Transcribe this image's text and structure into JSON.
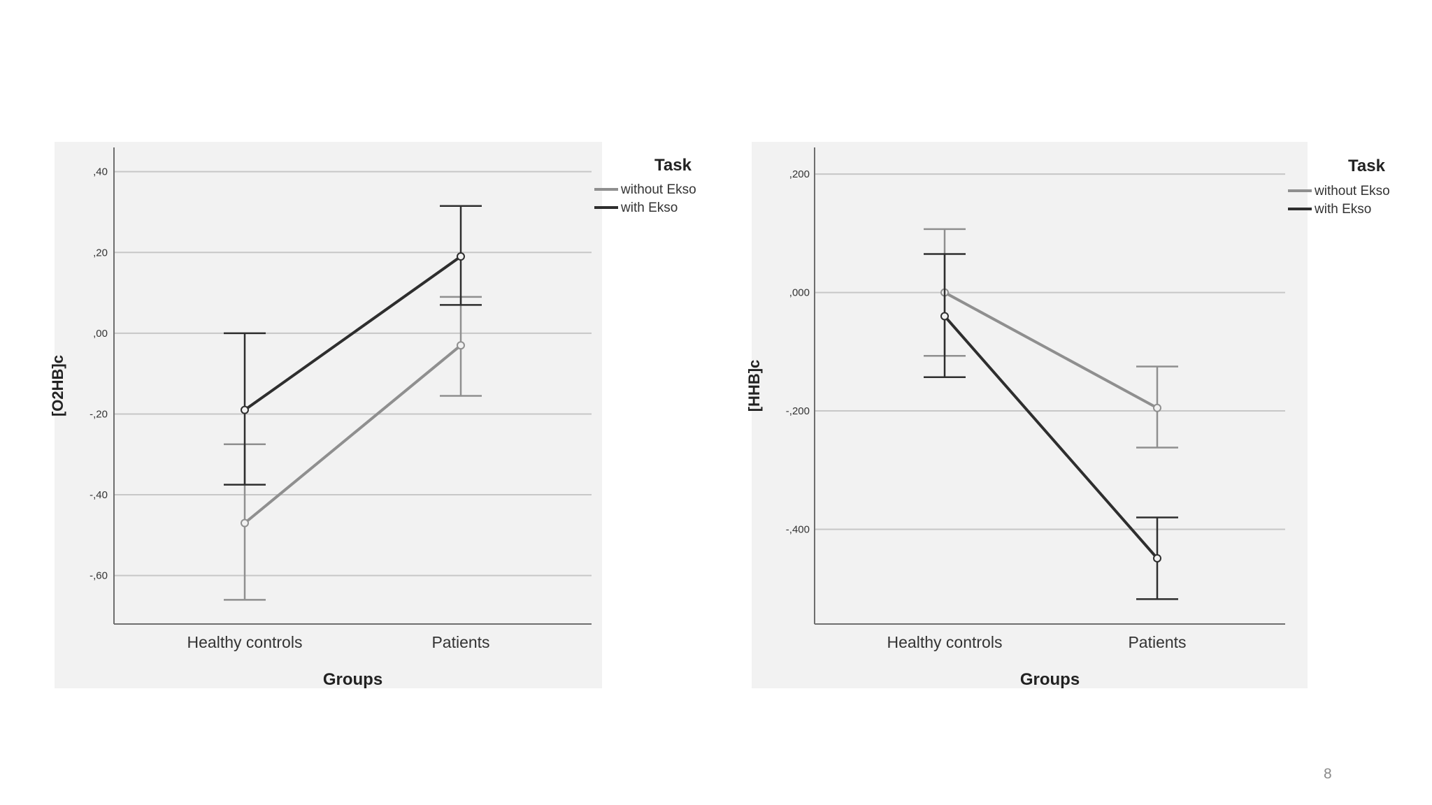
{
  "page": {
    "page_number": "8"
  },
  "colors": {
    "without_ekso": "#8f8f8f",
    "with_ekso": "#2e2e2e",
    "gridline": "#c7c7c7",
    "axis": "#6e6e6e",
    "panel_background": "#f2f2f2"
  },
  "chart_data": [
    {
      "type": "line",
      "title": "",
      "xlabel": "Groups",
      "ylabel": "[O2HB]c",
      "categories": [
        "Healthy controls",
        "Patients"
      ],
      "ylim": [
        -0.72,
        0.46
      ],
      "yticks": [
        0.4,
        0.2,
        0.0,
        -0.2,
        -0.4,
        -0.6
      ],
      "ytick_labels": [
        ",40",
        ",20",
        ",00",
        "-,20",
        "-,40",
        "-,60"
      ],
      "grid": true,
      "legend": {
        "title": "Task",
        "placement": "right"
      },
      "error_bars": true,
      "series": [
        {
          "name": "without Ekso",
          "color_key": "without_ekso",
          "values": [
            -0.47,
            -0.03
          ],
          "error_low": [
            -0.66,
            -0.155
          ],
          "error_high": [
            -0.275,
            0.09
          ]
        },
        {
          "name": "with Ekso",
          "color_key": "with_ekso",
          "values": [
            -0.19,
            0.19
          ],
          "error_low": [
            -0.375,
            0.07
          ],
          "error_high": [
            0.0,
            0.315
          ]
        }
      ]
    },
    {
      "type": "line",
      "title": "",
      "xlabel": "Groups",
      "ylabel": "[HHB]c",
      "categories": [
        "Healthy controls",
        "Patients"
      ],
      "ylim": [
        -0.56,
        0.245
      ],
      "yticks": [
        0.2,
        0.0,
        -0.2,
        -0.4
      ],
      "ytick_labels": [
        ",200",
        ",000",
        "-,200",
        "-,400"
      ],
      "grid": true,
      "legend": {
        "title": "Task",
        "placement": "right"
      },
      "error_bars": true,
      "series": [
        {
          "name": "without Ekso",
          "color_key": "without_ekso",
          "values": [
            0.0,
            -0.195
          ],
          "error_low": [
            -0.107,
            -0.262
          ],
          "error_high": [
            0.107,
            -0.125
          ]
        },
        {
          "name": "with Ekso",
          "color_key": "with_ekso",
          "values": [
            -0.04,
            -0.449
          ],
          "error_low": [
            -0.143,
            -0.518
          ],
          "error_high": [
            0.065,
            -0.38
          ]
        }
      ]
    }
  ]
}
